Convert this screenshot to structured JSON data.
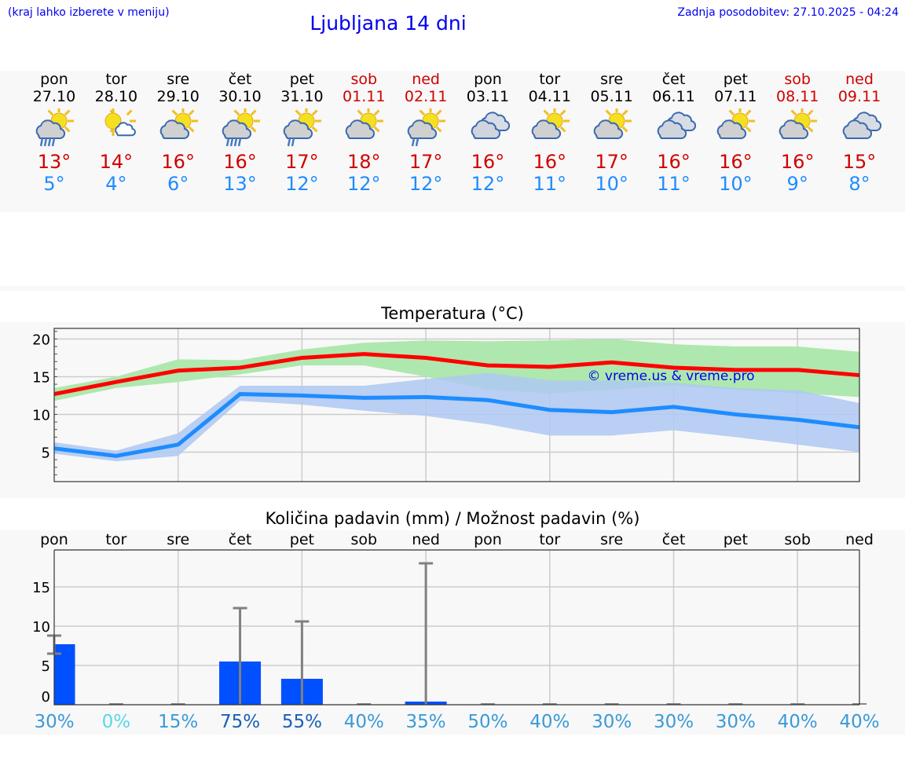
{
  "header": {
    "note": "(kraj lahko izberete v meniju)",
    "title": "Ljubljana 14 dni",
    "updated": "Zadnja posodobitev: 27.10.2025 - 04:24"
  },
  "colors": {
    "max": "#ff0000",
    "min": "#1e8cff",
    "max_band": "#aee8ae",
    "min_band": "#aec8f2",
    "bar": "#0050ff",
    "error": "#808080",
    "weekend": "#d00000"
  },
  "days": [
    {
      "name": "pon",
      "date": "27.10",
      "weekend": false,
      "icon": "sun-cloud-rain-icon",
      "max": "13°",
      "min": "5°"
    },
    {
      "name": "tor",
      "date": "28.10",
      "weekend": false,
      "icon": "sun-small-cloud-icon",
      "max": "14°",
      "min": "4°"
    },
    {
      "name": "sre",
      "date": "29.10",
      "weekend": false,
      "icon": "sun-cloud-icon",
      "max": "16°",
      "min": "6°"
    },
    {
      "name": "čet",
      "date": "30.10",
      "weekend": false,
      "icon": "sun-cloud-rain-icon",
      "max": "16°",
      "min": "13°"
    },
    {
      "name": "pet",
      "date": "31.10",
      "weekend": false,
      "icon": "sun-cloud-light-rain-icon",
      "max": "17°",
      "min": "12°"
    },
    {
      "name": "sob",
      "date": "01.11",
      "weekend": true,
      "icon": "sun-cloud-icon",
      "max": "18°",
      "min": "12°"
    },
    {
      "name": "ned",
      "date": "02.11",
      "weekend": true,
      "icon": "sun-cloud-light-rain-icon",
      "max": "17°",
      "min": "12°"
    },
    {
      "name": "pon",
      "date": "03.11",
      "weekend": false,
      "icon": "clouds-icon",
      "max": "16°",
      "min": "12°"
    },
    {
      "name": "tor",
      "date": "04.11",
      "weekend": false,
      "icon": "sun-cloud-icon",
      "max": "16°",
      "min": "11°"
    },
    {
      "name": "sre",
      "date": "05.11",
      "weekend": false,
      "icon": "sun-cloud-icon",
      "max": "17°",
      "min": "10°"
    },
    {
      "name": "čet",
      "date": "06.11",
      "weekend": false,
      "icon": "clouds-icon",
      "max": "16°",
      "min": "11°"
    },
    {
      "name": "pet",
      "date": "07.11",
      "weekend": false,
      "icon": "sun-cloud-icon",
      "max": "16°",
      "min": "10°"
    },
    {
      "name": "sob",
      "date": "08.11",
      "weekend": true,
      "icon": "sun-cloud-icon",
      "max": "16°",
      "min": "9°"
    },
    {
      "name": "ned",
      "date": "09.11",
      "weekend": true,
      "icon": "clouds-icon",
      "max": "15°",
      "min": "8°"
    }
  ],
  "chart_data": [
    {
      "type": "line",
      "title": "Temperatura (°C)",
      "watermark": "© vreme.us & vreme.pro",
      "ylim": [
        1.1,
        21.4
      ],
      "yticks": [
        5,
        10,
        15,
        20
      ],
      "grid": true,
      "x": [
        "27.10",
        "28.10",
        "29.10",
        "30.10",
        "31.10",
        "01.11",
        "02.11",
        "03.11",
        "04.11",
        "05.11",
        "06.11",
        "07.11",
        "08.11",
        "09.11"
      ],
      "series": [
        {
          "key": "max",
          "values": [
            12.7,
            14.3,
            15.8,
            16.2,
            17.5,
            18.0,
            17.5,
            16.5,
            16.3,
            16.9,
            16.2,
            15.9,
            15.9,
            15.2
          ],
          "band_low": [
            11.8,
            13.5,
            14.3,
            15.3,
            16.5,
            16.5,
            15.0,
            13.3,
            12.8,
            13.3,
            13.8,
            13.3,
            12.8,
            12.3
          ],
          "band_high": [
            13.5,
            15.0,
            17.3,
            17.2,
            18.6,
            19.5,
            19.8,
            19.7,
            19.8,
            20.0,
            19.3,
            19.0,
            19.0,
            18.3
          ]
        },
        {
          "key": "min",
          "values": [
            5.5,
            4.5,
            6.0,
            12.7,
            12.5,
            12.2,
            12.3,
            11.9,
            10.6,
            10.3,
            11.0,
            10.0,
            9.3,
            8.3
          ],
          "band_low": [
            4.8,
            3.8,
            4.5,
            11.8,
            11.3,
            10.5,
            9.8,
            8.7,
            7.2,
            7.2,
            7.9,
            7.0,
            6.0,
            5.0
          ],
          "band_high": [
            6.3,
            5.2,
            7.5,
            13.8,
            13.8,
            13.8,
            14.7,
            15.5,
            14.5,
            14.5,
            14.2,
            13.5,
            13.2,
            11.5
          ]
        }
      ]
    },
    {
      "type": "bar",
      "title": "Količina padavin (mm) / Možnost padavin (%)",
      "ylim": [
        -1.1,
        19.7
      ],
      "yticks": [
        0,
        5,
        10,
        15
      ],
      "grid": true,
      "categories": [
        "pon",
        "tor",
        "sre",
        "čet",
        "pet",
        "sob",
        "ned",
        "pon",
        "tor",
        "sre",
        "čet",
        "pet",
        "sob",
        "ned"
      ],
      "values": [
        7.7,
        0,
        0,
        5.5,
        3.3,
        0,
        0.4,
        0,
        0,
        0,
        0,
        0,
        0,
        0
      ],
      "error_low": [
        6.5,
        0,
        0,
        0,
        0,
        0,
        0,
        0,
        0,
        0,
        0,
        0,
        0,
        0
      ],
      "error_high": [
        8.8,
        0,
        0,
        12.3,
        10.6,
        0,
        18.0,
        0,
        0,
        0,
        0,
        0,
        0,
        0
      ],
      "probability": [
        "30%",
        "0%",
        "15%",
        "75%",
        "55%",
        "40%",
        "35%",
        "50%",
        "40%",
        "30%",
        "30%",
        "30%",
        "40%",
        "40%"
      ],
      "probability_values": [
        30,
        0,
        15,
        75,
        55,
        40,
        35,
        50,
        40,
        30,
        30,
        30,
        40,
        40
      ]
    }
  ]
}
